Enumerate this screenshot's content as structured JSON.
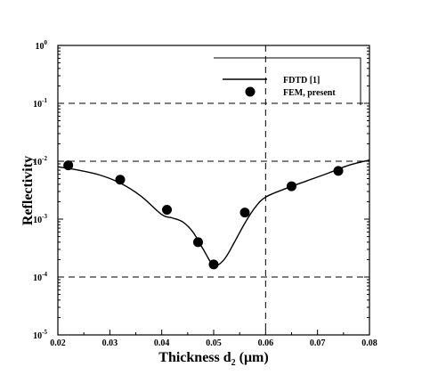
{
  "chart_data": {
    "type": "line",
    "xlabel": "Thickness d",
    "xlabel_sub": "2",
    "xlabel_unit": " (μm)",
    "ylabel": "Reflectivity",
    "xlim": [
      0.02,
      0.08
    ],
    "ylim": [
      1e-05,
      1
    ],
    "y_scale": "log",
    "grid": "dashed, selected lines",
    "x_ticks": [
      "0.02",
      "0.03",
      "0.04",
      "0.05",
      "0.06",
      "0.07",
      "0.08"
    ],
    "y_ticks": [
      {
        "base": "10",
        "exp": "0",
        "value": 1
      },
      {
        "base": "10",
        "exp": "-1",
        "value": 0.1
      },
      {
        "base": "10",
        "exp": "-2",
        "value": 0.01
      },
      {
        "base": "10",
        "exp": "-3",
        "value": 0.001
      },
      {
        "base": "10",
        "exp": "-4",
        "value": 0.0001
      },
      {
        "base": "10",
        "exp": "-5",
        "value": 1e-05
      }
    ],
    "legend_position": "top-right",
    "series": [
      {
        "name": "FDTD [1]",
        "style": "line",
        "x": [
          0.02,
          0.024,
          0.028,
          0.032,
          0.036,
          0.04,
          0.042,
          0.044,
          0.046,
          0.048,
          0.05,
          0.052,
          0.054,
          0.056,
          0.058,
          0.06,
          0.064,
          0.068,
          0.072,
          0.076,
          0.08
        ],
        "y": [
          0.008,
          0.007,
          0.0058,
          0.0042,
          0.0025,
          0.0012,
          0.00105,
          0.0009,
          0.0006,
          0.0003,
          0.00016,
          0.0002,
          0.0004,
          0.00085,
          0.0016,
          0.0024,
          0.0034,
          0.0046,
          0.0062,
          0.0085,
          0.0105
        ]
      },
      {
        "name": "FEM, present",
        "style": "marker",
        "x": [
          0.022,
          0.032,
          0.041,
          0.047,
          0.05,
          0.056,
          0.065,
          0.074
        ],
        "y": [
          0.0085,
          0.0048,
          0.00145,
          0.0004,
          0.000165,
          0.0013,
          0.0037,
          0.0068
        ]
      }
    ]
  }
}
